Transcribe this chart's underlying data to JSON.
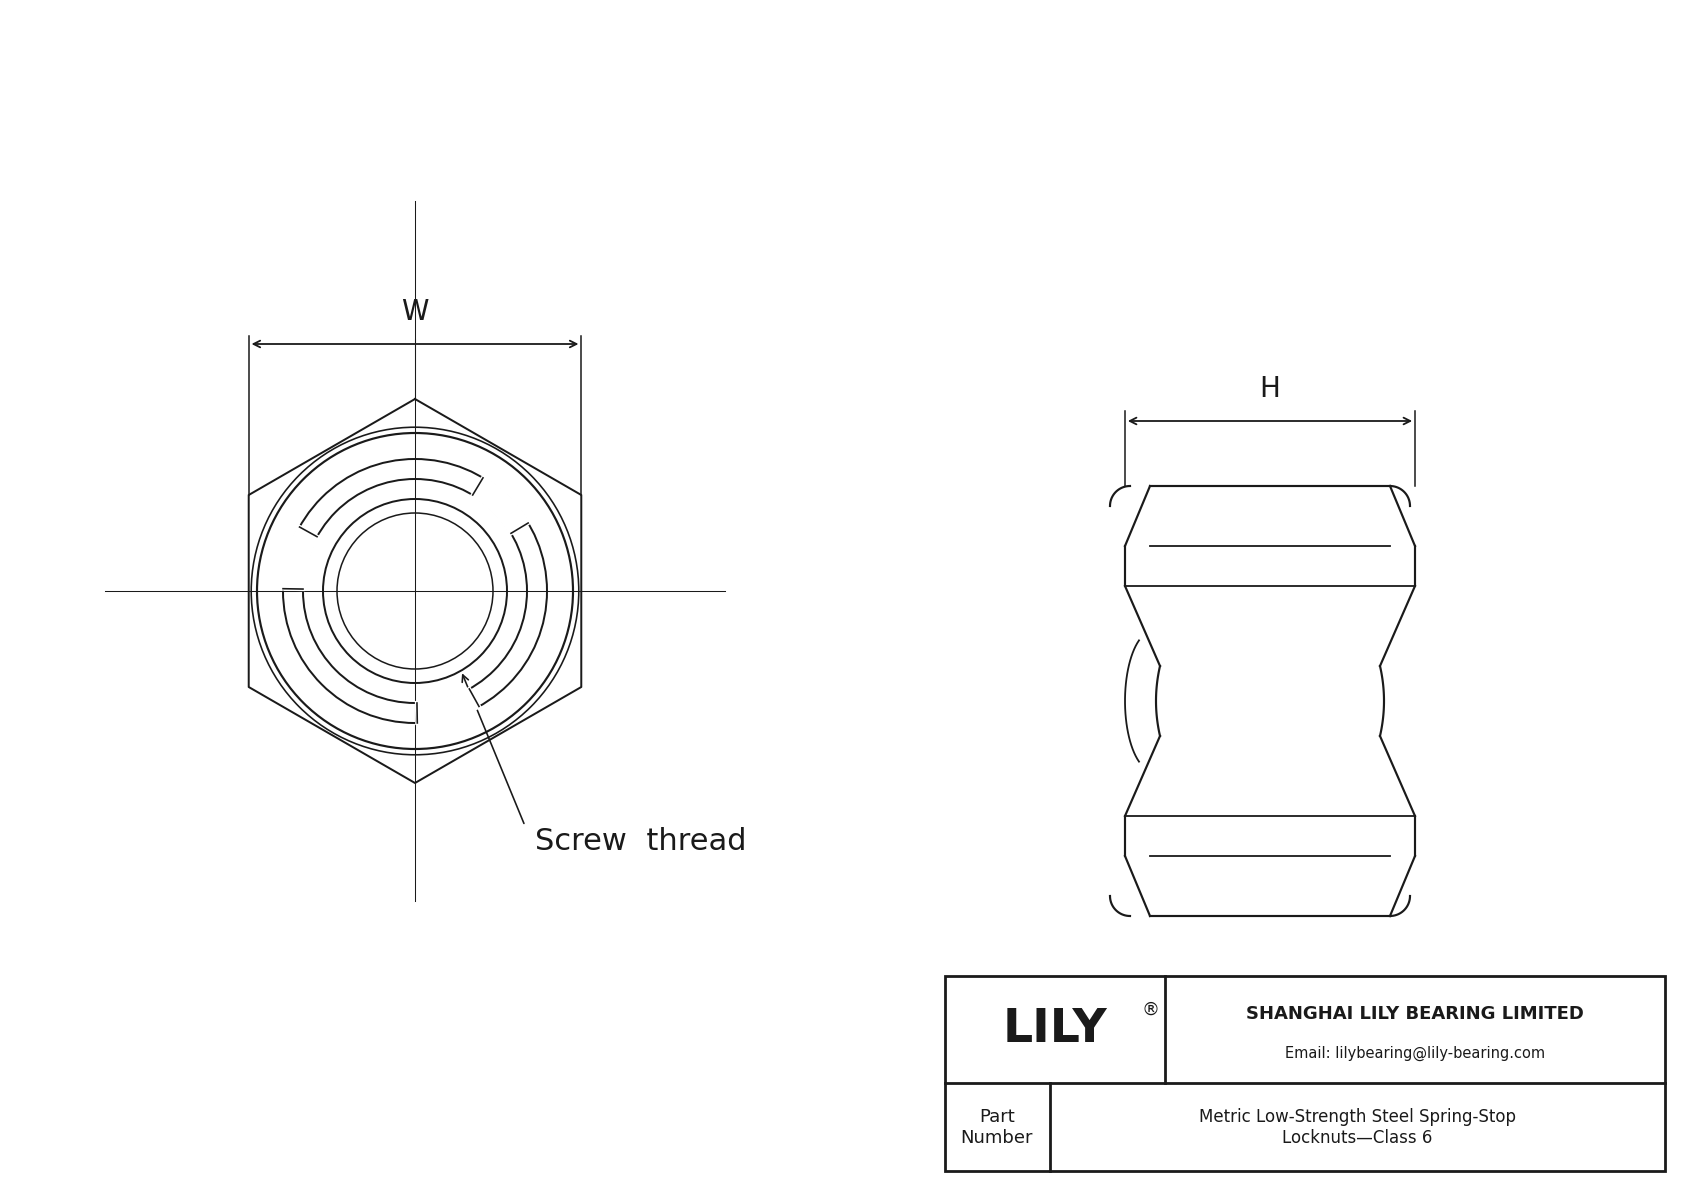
{
  "bg_color": "#ffffff",
  "line_color": "#1a1a1a",
  "line_width": 1.3,
  "company": "SHANGHAI LILY BEARING LIMITED",
  "email": "Email: lilybearing@lily-bearing.com",
  "part_label": "Part\nNumber",
  "part_desc": "Metric Low-Strength Steel Spring-Stop\nLocknuts—Class 6",
  "lily_text": "LILY",
  "dim_W": "W",
  "dim_H": "H",
  "screw_thread_label": "Screw  thread"
}
